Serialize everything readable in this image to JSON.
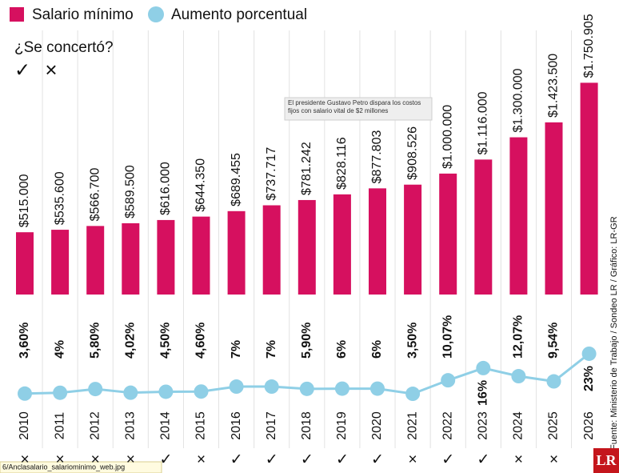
{
  "chart_data": {
    "type": "bar",
    "categories": [
      "2010",
      "2011",
      "2012",
      "2013",
      "2014",
      "2015",
      "2016",
      "2017",
      "2018",
      "2019",
      "2020",
      "2021",
      "2022",
      "2023",
      "2024",
      "2025",
      "2026"
    ],
    "series": [
      {
        "name": "Salario mínimo",
        "type": "bar",
        "color": "#d6105f",
        "values": [
          515000,
          535600,
          566700,
          589500,
          616000,
          644350,
          689455,
          737717,
          781242,
          828116,
          877803,
          908526,
          1000000,
          1116000,
          1300000,
          1423500,
          1750905
        ],
        "value_labels": [
          "$515.000",
          "$535.600",
          "$566.700",
          "$589.500",
          "$616.000",
          "$644.350",
          "$689.455",
          "$737.717",
          "$781.242",
          "$828.116",
          "$877.803",
          "$908.526",
          "$1.000.000",
          "$1.116.000",
          "$1.300.000",
          "$1.423.500",
          "$1.750.905"
        ]
      },
      {
        "name": "Aumento porcentual",
        "type": "line",
        "axis": "y2",
        "color": "#8fcfe6",
        "values": [
          3.6,
          4,
          5.8,
          4.02,
          4.5,
          4.6,
          7,
          7,
          5.9,
          6,
          6,
          3.5,
          10.07,
          16,
          12.07,
          9.54,
          23
        ],
        "value_labels": [
          "3,60%",
          "4%",
          "5,80%",
          "4,02%",
          "4,50%",
          "4,60%",
          "7%",
          "7%",
          "5,90%",
          "6%",
          "6%",
          "3,50%",
          "10,07%",
          "16%",
          "12,07%",
          "9,54%",
          "23%"
        ]
      }
    ],
    "ylim": [
      0,
      1800000
    ],
    "y2lim": [
      0,
      30
    ],
    "concert_title": "¿Se concertó?",
    "concert_legend": [
      "✓",
      "×"
    ],
    "concerted": [
      "×",
      "×",
      "×",
      "×",
      "✓",
      "×",
      "✓",
      "✓",
      "✓",
      "✓",
      "✓",
      "×",
      "✓",
      "✓",
      "×",
      "×",
      null
    ],
    "annotation": "El presidente Gustavo Petro dispara los costos fijos con salario vital de $2 millones",
    "source": "Fuente: Ministerio de Trabajo / Sondeo LR / Gráfico: LR-GR",
    "logo": "LR"
  },
  "status_bar": "6/Anclasalario_salariominimo_web.jpg"
}
